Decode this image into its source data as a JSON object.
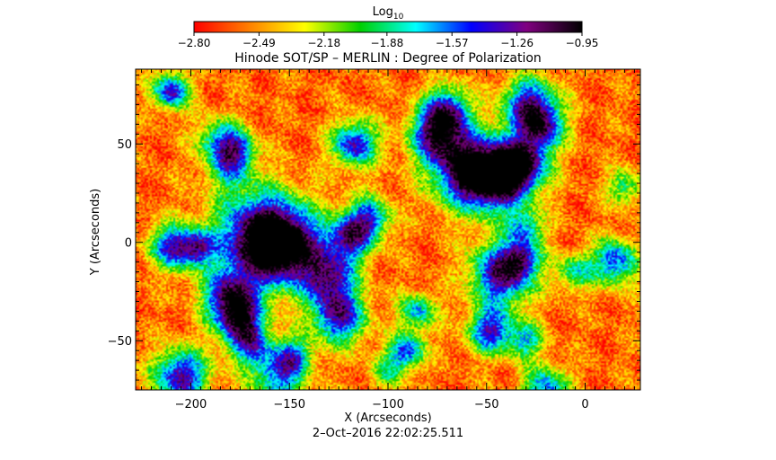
{
  "chart_data": {
    "type": "heatmap",
    "title": "Hinode SOT/SP – MERLIN : Degree of Polarization",
    "xlabel": "X (Arcseconds)",
    "ylabel": "Y (Arcseconds)",
    "timestamp": "2–Oct–2016 22:02:25.511",
    "xlim": [
      -228,
      28
    ],
    "ylim": [
      -75,
      88
    ],
    "x_ticks": [
      -200,
      -150,
      -100,
      -50,
      0
    ],
    "y_ticks": [
      -50,
      0,
      50
    ],
    "x_tick_labels": [
      "−200",
      "−150",
      "−100",
      "−50",
      "0"
    ],
    "y_tick_labels": [
      "−50",
      "0",
      "50"
    ],
    "colorbar": {
      "label_base": "Log",
      "label_subscript": "10",
      "range": [
        -2.8,
        -0.95
      ],
      "tick_labels": [
        "−2.80",
        "−2.49",
        "−2.18",
        "−1.88",
        "−1.57",
        "−1.26",
        "−0.95"
      ],
      "tick_values": [
        -2.8,
        -2.49,
        -2.18,
        -1.88,
        -1.57,
        -1.26,
        -0.95
      ],
      "colormap": [
        "#ff0000",
        "#ff8000",
        "#ffff00",
        "#00d000",
        "#00ffff",
        "#0000ff",
        "#800080",
        "#000000"
      ]
    },
    "high_polarization_features": [
      {
        "x": -210,
        "y": 77,
        "strength": 0.85,
        "radius": 4
      },
      {
        "x": -210,
        "y": -2,
        "strength": 0.75,
        "radius": 5
      },
      {
        "x": -197,
        "y": -3,
        "strength": 0.7,
        "radius": 4
      },
      {
        "x": -186,
        "y": 52,
        "strength": 0.55,
        "radius": 5
      },
      {
        "x": -180,
        "y": 38,
        "strength": 0.5,
        "radius": 5
      },
      {
        "x": -176,
        "y": 48,
        "strength": 0.5,
        "radius": 4
      },
      {
        "x": -165,
        "y": 3,
        "strength": 1.0,
        "radius": 10
      },
      {
        "x": -152,
        "y": -2,
        "strength": 0.9,
        "radius": 8
      },
      {
        "x": -180,
        "y": -28,
        "strength": 0.9,
        "radius": 6
      },
      {
        "x": -175,
        "y": -40,
        "strength": 0.7,
        "radius": 5
      },
      {
        "x": -170,
        "y": -52,
        "strength": 0.6,
        "radius": 5
      },
      {
        "x": -205,
        "y": -68,
        "strength": 0.9,
        "radius": 6
      },
      {
        "x": -155,
        "y": -68,
        "strength": 0.7,
        "radius": 6
      },
      {
        "x": -148,
        "y": -57,
        "strength": 0.5,
        "radius": 4
      },
      {
        "x": -125,
        "y": -38,
        "strength": 0.85,
        "radius": 6
      },
      {
        "x": -130,
        "y": -18,
        "strength": 0.8,
        "radius": 6
      },
      {
        "x": -120,
        "y": 2,
        "strength": 0.75,
        "radius": 5
      },
      {
        "x": -110,
        "y": 12,
        "strength": 0.7,
        "radius": 5
      },
      {
        "x": -117,
        "y": 50,
        "strength": 0.85,
        "radius": 5
      },
      {
        "x": -60,
        "y": 37,
        "strength": 1.0,
        "radius": 8
      },
      {
        "x": -45,
        "y": 32,
        "strength": 0.95,
        "radius": 7
      },
      {
        "x": -32,
        "y": 40,
        "strength": 0.9,
        "radius": 6
      },
      {
        "x": -75,
        "y": 55,
        "strength": 0.9,
        "radius": 6
      },
      {
        "x": -70,
        "y": 68,
        "strength": 0.7,
        "radius": 5
      },
      {
        "x": -28,
        "y": 70,
        "strength": 0.85,
        "radius": 6
      },
      {
        "x": -22,
        "y": 58,
        "strength": 0.7,
        "radius": 5
      },
      {
        "x": -42,
        "y": -16,
        "strength": 0.95,
        "radius": 7
      },
      {
        "x": -32,
        "y": -8,
        "strength": 0.6,
        "radius": 4
      },
      {
        "x": -30,
        "y": 8,
        "strength": 0.55,
        "radius": 4
      },
      {
        "x": -48,
        "y": -45,
        "strength": 0.8,
        "radius": 5
      },
      {
        "x": -30,
        "y": -50,
        "strength": 0.55,
        "radius": 4
      },
      {
        "x": -85,
        "y": -35,
        "strength": 0.6,
        "radius": 4
      },
      {
        "x": -90,
        "y": -55,
        "strength": 0.7,
        "radius": 4
      },
      {
        "x": 15,
        "y": -10,
        "strength": 0.75,
        "radius": 5
      },
      {
        "x": -5,
        "y": -15,
        "strength": 0.5,
        "radius": 4
      },
      {
        "x": 20,
        "y": 28,
        "strength": 0.45,
        "radius": 4
      },
      {
        "x": -20,
        "y": -75,
        "strength": 0.7,
        "radius": 5
      },
      {
        "x": -100,
        "y": -65,
        "strength": 0.4,
        "radius": 4
      }
    ]
  }
}
